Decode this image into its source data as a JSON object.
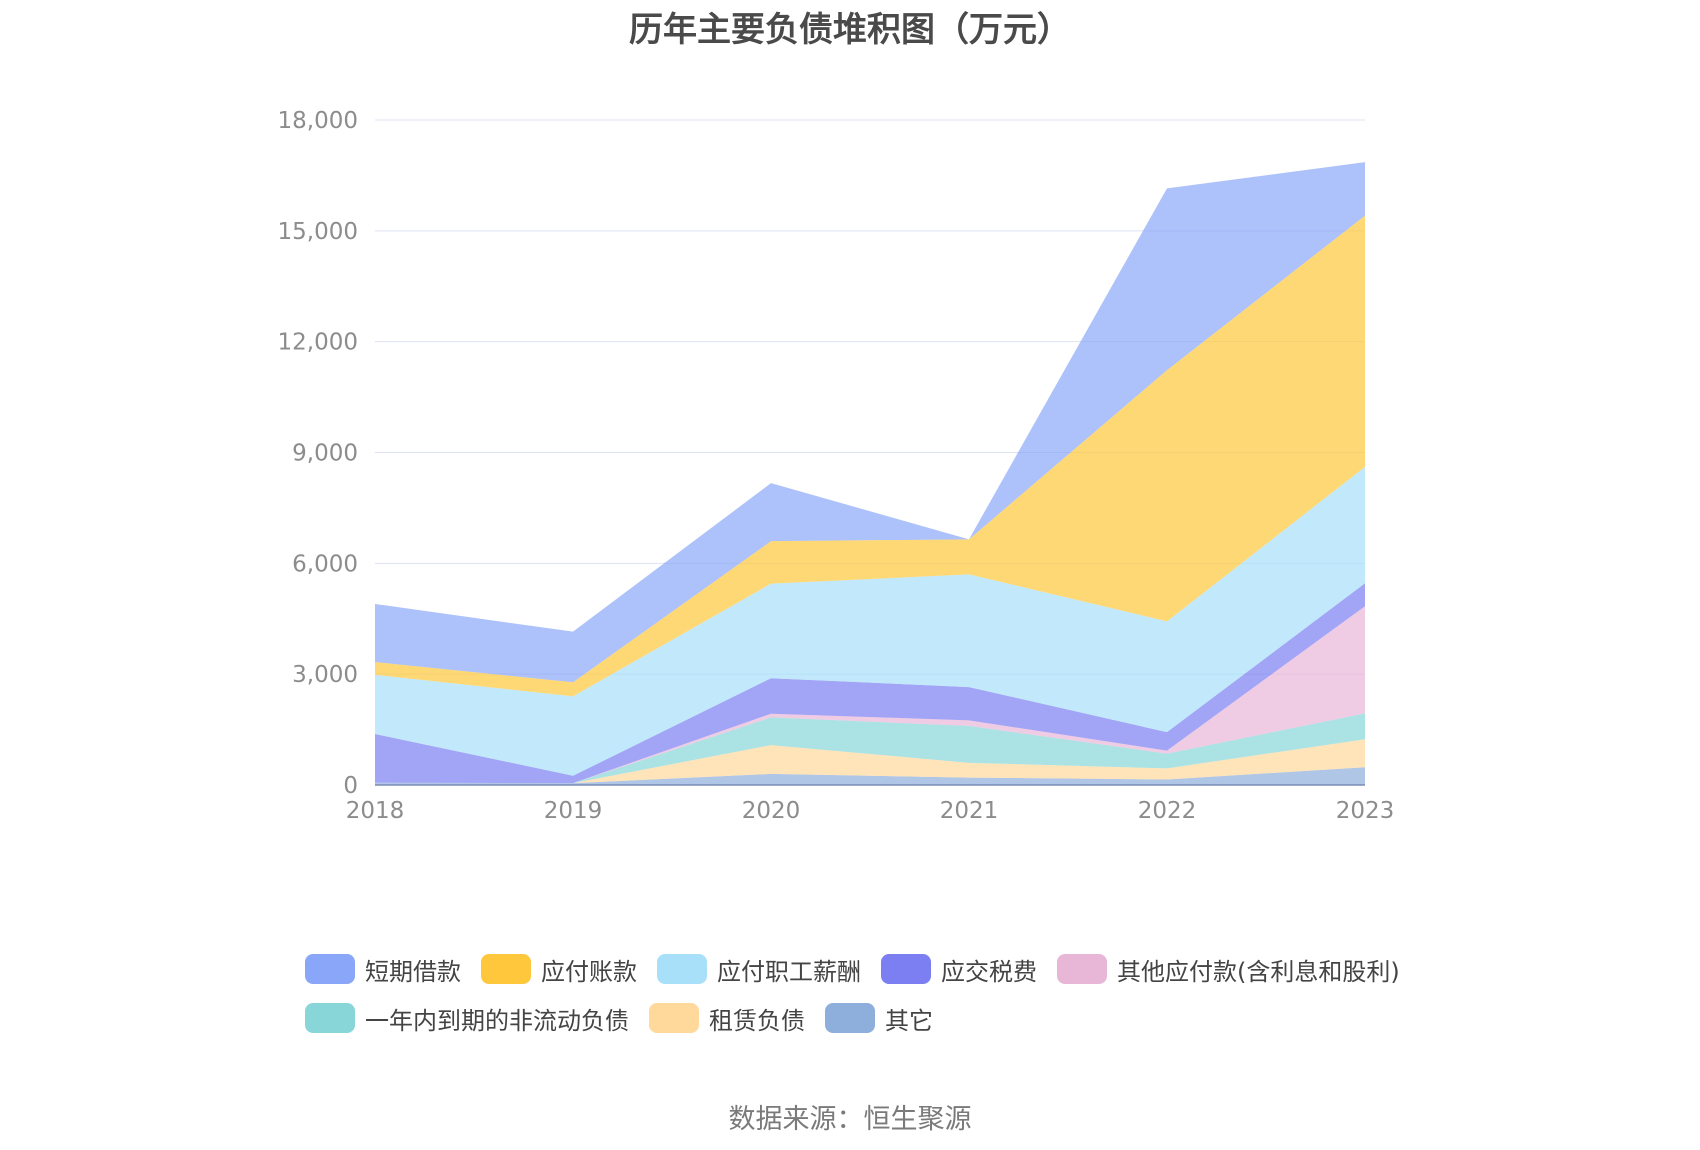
{
  "title": "历年主要负债堆积图（万元）",
  "source": "数据来源：恒生聚源",
  "chart_data": {
    "type": "area",
    "stacked": true,
    "title": "历年主要负债堆积图（万元）",
    "xlabel": "",
    "ylabel": "",
    "x": [
      "2018",
      "2019",
      "2020",
      "2021",
      "2022",
      "2023"
    ],
    "ylim": [
      0,
      18000
    ],
    "yticks": [
      0,
      3000,
      6000,
      9000,
      12000,
      15000,
      18000
    ],
    "ytick_labels": [
      "0",
      "3,000",
      "6,000",
      "9,000",
      "12,000",
      "15,000",
      "18,000"
    ],
    "grid": true,
    "legend_position": "bottom",
    "series": [
      {
        "name": "其它",
        "color": "#8eaedb",
        "values": [
          60,
          50,
          300,
          200,
          150,
          480
        ]
      },
      {
        "name": "租赁负债",
        "color": "#ffd89b",
        "values": [
          0,
          0,
          780,
          400,
          300,
          760
        ]
      },
      {
        "name": "一年内到期的非流动负债",
        "color": "#88d6d8",
        "values": [
          0,
          0,
          750,
          1000,
          400,
          700
        ]
      },
      {
        "name": "其他应付款(含利息和股利)",
        "color": "#e8b7d8",
        "values": [
          0,
          0,
          100,
          150,
          80,
          2900
        ]
      },
      {
        "name": "应交税费",
        "color": "#7b7ff2",
        "values": [
          1320,
          200,
          960,
          900,
          500,
          620
        ]
      },
      {
        "name": "应付职工薪酬",
        "color": "#a8e0fa",
        "values": [
          1600,
          2150,
          2560,
          3050,
          3000,
          3150
        ]
      },
      {
        "name": "应付账款",
        "color": "#ffc83c",
        "values": [
          350,
          380,
          1150,
          950,
          6800,
          6800
        ]
      },
      {
        "name": "短期借款",
        "color": "#8aa6f8",
        "values": [
          1570,
          1370,
          1570,
          0,
          4920,
          1450
        ]
      }
    ]
  },
  "legend": {
    "rows": [
      [
        {
          "label": "短期借款",
          "color": "#8aa6f8"
        },
        {
          "label": "应付账款",
          "color": "#ffc83c"
        },
        {
          "label": "应付职工薪酬",
          "color": "#a8e0fa"
        },
        {
          "label": "应交税费",
          "color": "#7b7ff2"
        },
        {
          "label": "其他应付款(含利息和股利)",
          "color": "#e8b7d8"
        }
      ],
      [
        {
          "label": "一年内到期的非流动负债",
          "color": "#88d6d8"
        },
        {
          "label": "租赁负债",
          "color": "#ffd89b"
        },
        {
          "label": "其它",
          "color": "#8eaedb"
        }
      ]
    ]
  }
}
